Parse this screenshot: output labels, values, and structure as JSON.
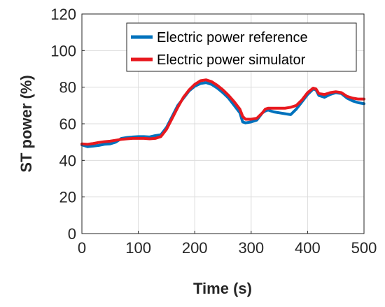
{
  "chart_data": {
    "type": "line",
    "xlabel": "Time (s)",
    "ylabel": "ST power (%)",
    "xlim": [
      0,
      500
    ],
    "ylim": [
      0,
      120
    ],
    "xticks": [
      "0",
      "100",
      "200",
      "300",
      "400",
      "500"
    ],
    "yticks": [
      "0",
      "20",
      "40",
      "60",
      "80",
      "100",
      "120"
    ],
    "grid": true,
    "legend_position": "top-right",
    "series": [
      {
        "name": "Electric power reference",
        "color": "#0072BD",
        "x": [
          0,
          10,
          20,
          30,
          40,
          50,
          60,
          70,
          80,
          90,
          100,
          110,
          120,
          130,
          140,
          150,
          160,
          170,
          180,
          190,
          200,
          210,
          220,
          230,
          240,
          250,
          260,
          270,
          280,
          285,
          290,
          300,
          310,
          320,
          325,
          330,
          340,
          350,
          360,
          370,
          380,
          390,
          400,
          410,
          415,
          420,
          430,
          440,
          450,
          460,
          470,
          480,
          490,
          500
        ],
        "y": [
          48.5,
          47.5,
          47.8,
          48.2,
          48.8,
          49.0,
          50.0,
          52.0,
          52.5,
          52.8,
          53.0,
          53.0,
          52.8,
          53.5,
          54.0,
          58.0,
          64.0,
          70.0,
          74.0,
          78.0,
          80.5,
          82.0,
          82.5,
          81.5,
          79.5,
          77.0,
          74.0,
          70.0,
          66.0,
          61.0,
          60.5,
          61.0,
          62.0,
          66.0,
          67.0,
          67.5,
          66.5,
          66.0,
          65.5,
          65.0,
          68.0,
          72.0,
          76.0,
          79.0,
          78.5,
          75.5,
          74.5,
          76.0,
          77.0,
          76.5,
          74.0,
          72.5,
          71.5,
          71.0
        ]
      },
      {
        "name": "Electric power simulator",
        "color": "#E8191F",
        "x": [
          0,
          10,
          20,
          30,
          40,
          50,
          60,
          70,
          80,
          90,
          100,
          110,
          120,
          130,
          140,
          150,
          160,
          170,
          180,
          190,
          200,
          210,
          220,
          230,
          240,
          250,
          260,
          270,
          280,
          285,
          290,
          300,
          310,
          320,
          325,
          330,
          340,
          350,
          360,
          370,
          380,
          390,
          400,
          410,
          415,
          420,
          430,
          440,
          450,
          460,
          470,
          480,
          490,
          500
        ],
        "y": [
          49.0,
          48.8,
          49.2,
          49.8,
          50.2,
          50.5,
          51.0,
          51.5,
          51.8,
          52.0,
          52.0,
          52.0,
          51.8,
          52.0,
          53.0,
          57.0,
          63.0,
          69.0,
          74.5,
          78.5,
          81.5,
          83.5,
          84.0,
          83.0,
          81.0,
          78.5,
          75.5,
          72.0,
          68.0,
          64.0,
          62.5,
          62.5,
          63.0,
          66.0,
          68.0,
          68.5,
          68.5,
          68.5,
          68.5,
          69.0,
          70.0,
          73.0,
          77.0,
          79.5,
          79.0,
          76.5,
          76.0,
          77.0,
          77.5,
          77.0,
          75.0,
          74.0,
          73.5,
          73.5
        ]
      }
    ]
  }
}
